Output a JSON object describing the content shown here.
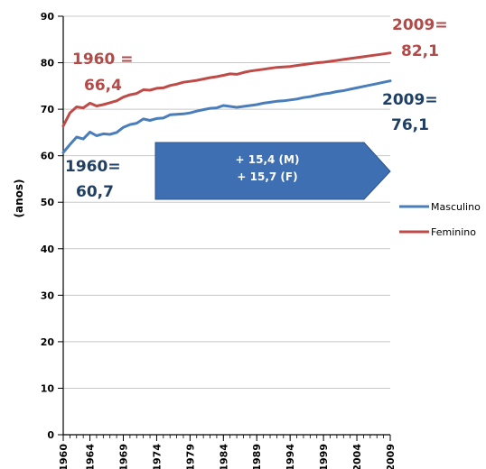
{
  "chart_data": {
    "type": "line",
    "ylabel": "(anos)",
    "ylim": [
      0,
      90
    ],
    "yticks": [
      0,
      10,
      20,
      30,
      40,
      50,
      60,
      70,
      80,
      90
    ],
    "xlim": [
      1960,
      2009
    ],
    "xtick_values": [
      1960,
      1964,
      1969,
      1974,
      1979,
      1984,
      1989,
      1994,
      1999,
      2004,
      2009
    ],
    "xtick_labels": [
      "1960",
      "1964",
      "1969",
      "1974",
      "1979",
      "1984",
      "1989",
      "1994",
      "1999",
      "2004",
      "2009"
    ],
    "grid": true,
    "legend_position": "right",
    "x": [
      1960,
      1961,
      1962,
      1963,
      1964,
      1965,
      1966,
      1967,
      1968,
      1969,
      1970,
      1971,
      1972,
      1973,
      1974,
      1975,
      1976,
      1977,
      1978,
      1979,
      1980,
      1981,
      1982,
      1983,
      1984,
      1985,
      1986,
      1987,
      1988,
      1989,
      1990,
      1991,
      1992,
      1993,
      1994,
      1995,
      1996,
      1997,
      1998,
      1999,
      2000,
      2001,
      2002,
      2003,
      2004,
      2005,
      2006,
      2007,
      2008,
      2009
    ],
    "series": [
      {
        "name": "Masculino",
        "color": "#4a7ebb",
        "values": [
          60.7,
          62.4,
          64.0,
          63.6,
          65.1,
          64.3,
          64.7,
          64.6,
          65.0,
          66.1,
          66.7,
          67.0,
          67.9,
          67.6,
          68.0,
          68.1,
          68.8,
          68.9,
          69.0,
          69.2,
          69.6,
          69.9,
          70.2,
          70.3,
          70.8,
          70.6,
          70.4,
          70.6,
          70.8,
          71.0,
          71.3,
          71.5,
          71.7,
          71.8,
          72.0,
          72.2,
          72.5,
          72.7,
          73.0,
          73.3,
          73.5,
          73.8,
          74.0,
          74.3,
          74.6,
          74.9,
          75.2,
          75.5,
          75.8,
          76.1
        ]
      },
      {
        "name": "Feminino",
        "color": "#be4b48",
        "values": [
          66.4,
          69.2,
          70.5,
          70.3,
          71.3,
          70.7,
          71.0,
          71.4,
          71.8,
          72.6,
          73.1,
          73.4,
          74.2,
          74.1,
          74.5,
          74.6,
          75.1,
          75.4,
          75.8,
          76.0,
          76.2,
          76.5,
          76.8,
          77.0,
          77.3,
          77.6,
          77.5,
          77.9,
          78.2,
          78.4,
          78.6,
          78.8,
          79.0,
          79.1,
          79.2,
          79.4,
          79.6,
          79.8,
          80.0,
          80.1,
          80.3,
          80.5,
          80.7,
          80.9,
          81.1,
          81.3,
          81.5,
          81.7,
          81.9,
          82.1
        ]
      }
    ],
    "annotations": [
      {
        "text": "1960 =",
        "color": "#b34a47"
      },
      {
        "text": "66,4",
        "color": "#b34a47"
      },
      {
        "text": "1960=",
        "color": "#1f3f63"
      },
      {
        "text": "60,7",
        "color": "#1f3f63"
      },
      {
        "text": "2009=",
        "color": "#b34a47"
      },
      {
        "text": "82,1",
        "color": "#b34a47"
      },
      {
        "text": "2009=",
        "color": "#1f3f63"
      },
      {
        "text": "76,1",
        "color": "#1f3f63"
      }
    ],
    "arrow_callout": {
      "lines": [
        "+ 15,4 (M)",
        "+ 15,7 (F)"
      ],
      "fill": "#3e6fb3",
      "text_color": "#ffffff"
    }
  }
}
